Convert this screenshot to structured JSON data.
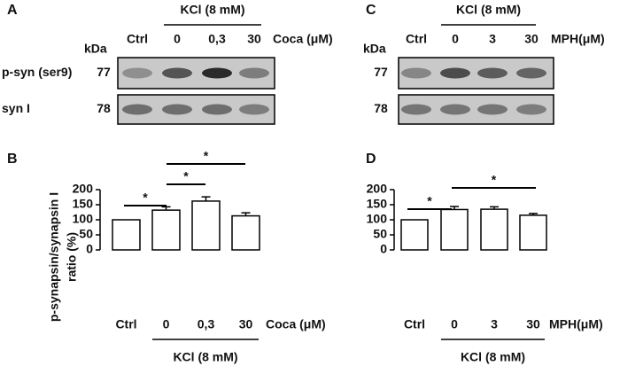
{
  "panel_labels": [
    "A",
    "B",
    "C",
    "D"
  ],
  "blots": [
    {
      "treatment_label": "KCl (8 mM)",
      "unit_label": "kDa",
      "lanes": [
        "Ctrl",
        "0",
        "0,3",
        "30"
      ],
      "drug_label": "Coca (μM)",
      "rows": [
        {
          "name": "p-syn (ser9)",
          "kda": "77"
        },
        {
          "name": "syn I",
          "kda": "78"
        }
      ]
    },
    {
      "treatment_label": "KCl (8 mM)",
      "unit_label": "kDa",
      "lanes": [
        "Ctrl",
        "0",
        "3",
        "30"
      ],
      "drug_label": "MPH(μM)",
      "rows": [
        {
          "kda": "77"
        },
        {
          "kda": "78"
        }
      ]
    }
  ],
  "chart_data": [
    {
      "type": "bar",
      "ylabel": [
        "p-synapsin/synapsin I",
        "ratio (%)"
      ],
      "categories": [
        "Ctrl",
        "0",
        "0,3",
        "30"
      ],
      "values": [
        100,
        132,
        162,
        113
      ],
      "errors": [
        null,
        11,
        14,
        10
      ],
      "color": "#ffffff",
      "ylim": [
        0,
        200
      ],
      "yticks": [
        0,
        50,
        100,
        150,
        200
      ],
      "drug_label": "Coca (μM)",
      "group_label": "KCl (8 mM)",
      "significance": [
        "*",
        "*",
        "*"
      ]
    },
    {
      "type": "bar",
      "categories": [
        "Ctrl",
        "0",
        "3",
        "30"
      ],
      "values": [
        100,
        134,
        135,
        115
      ],
      "errors": [
        null,
        10,
        8,
        6
      ],
      "color": "#ffffff",
      "ylim": [
        0,
        200
      ],
      "yticks": [
        0,
        50,
        100,
        150,
        200
      ],
      "drug_label": "MPH(μM)",
      "group_label": "KCl (8 mM)",
      "significance": [
        "*",
        "*"
      ]
    }
  ]
}
